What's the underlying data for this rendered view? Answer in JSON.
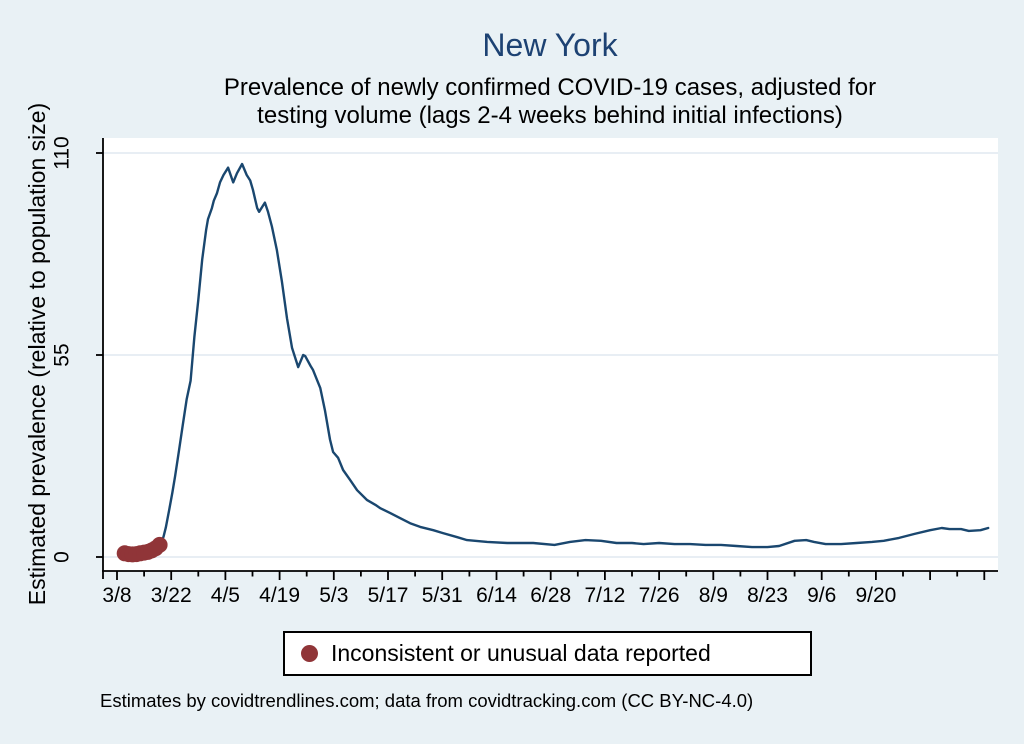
{
  "page": {
    "background": "#e9f1f5"
  },
  "header": {
    "title": "New York",
    "title_color": "#1d4273",
    "subtitle_lines": [
      "Prevalence of newly confirmed COVID-19 cases, adjusted for",
      "testing volume (lags 2-4 weeks behind initial infections)"
    ]
  },
  "chart_data": {
    "type": "line",
    "title": "New York",
    "subtitle": "Prevalence of newly confirmed COVID-19 cases, adjusted for testing volume (lags 2-4 weeks behind initial infections)",
    "xlabel": "",
    "ylabel": "Estimated prevalence (relative to population size)",
    "ylim": [
      0,
      110
    ],
    "yticks": [
      0,
      55,
      110
    ],
    "grid": "horizontal",
    "x_unit": "days since 3/8",
    "xtick_labels": [
      "3/8",
      "3/22",
      "4/5",
      "4/19",
      "5/3",
      "5/17",
      "5/31",
      "6/14",
      "6/28",
      "7/12",
      "7/26",
      "8/9",
      "8/23",
      "9/6",
      "9/20"
    ],
    "xtick_interval_days": 14,
    "minor_interval_days": 7,
    "axis_extent_days": 224,
    "colors": {
      "line": "#1a476f",
      "marker": "#903538",
      "gridline": "#e8eef4",
      "axis": "#000000",
      "plot_background": "#ffffff",
      "background": "#e9f1f5"
    },
    "series": [
      {
        "name": "Estimated prevalence",
        "color": "#1a476f",
        "points": [
          [
            2,
            1.0
          ],
          [
            4,
            0.7
          ],
          [
            6,
            1.0
          ],
          [
            8,
            1.4
          ],
          [
            10,
            2.4
          ],
          [
            11,
            3.3
          ],
          [
            12,
            5.5
          ],
          [
            12.6,
            8
          ],
          [
            13.5,
            13
          ],
          [
            14.3,
            17.6
          ],
          [
            15,
            22
          ],
          [
            16,
            29
          ],
          [
            17,
            36
          ],
          [
            18,
            43
          ],
          [
            19,
            48
          ],
          [
            20,
            60
          ],
          [
            21,
            70
          ],
          [
            22,
            81
          ],
          [
            23,
            89
          ],
          [
            23.5,
            92
          ],
          [
            24.5,
            95
          ],
          [
            25,
            97
          ],
          [
            25.8,
            99
          ],
          [
            26.6,
            102
          ],
          [
            27.5,
            104
          ],
          [
            28.7,
            106
          ],
          [
            30,
            102
          ],
          [
            31,
            104.5
          ],
          [
            32.3,
            107
          ],
          [
            33.5,
            104
          ],
          [
            34.4,
            102.5
          ],
          [
            35.1,
            100
          ],
          [
            36.2,
            95
          ],
          [
            36.7,
            94
          ],
          [
            38.2,
            96.5
          ],
          [
            39,
            94
          ],
          [
            40,
            90
          ],
          [
            41.3,
            83.5
          ],
          [
            42.6,
            75
          ],
          [
            43.9,
            65
          ],
          [
            45.2,
            57
          ],
          [
            46.8,
            51.7
          ],
          [
            48.1,
            55
          ],
          [
            48.6,
            54.7
          ],
          [
            50,
            52
          ],
          [
            50.6,
            51
          ],
          [
            52.5,
            46
          ],
          [
            53.7,
            40
          ],
          [
            55,
            32
          ],
          [
            55.8,
            28.6
          ],
          [
            57.1,
            27
          ],
          [
            58.4,
            23.7
          ],
          [
            60.2,
            21
          ],
          [
            62,
            18.2
          ],
          [
            64.6,
            15.5
          ],
          [
            66.7,
            14.2
          ],
          [
            68,
            13.3
          ],
          [
            70.5,
            12
          ],
          [
            73.1,
            10.6
          ],
          [
            75.7,
            9.2
          ],
          [
            78.3,
            8.2
          ],
          [
            81.7,
            7.3
          ],
          [
            84.2,
            6.5
          ],
          [
            87.9,
            5.4
          ],
          [
            90.4,
            4.6
          ],
          [
            95.6,
            4.1
          ],
          [
            100.8,
            3.8
          ],
          [
            107.5,
            3.8
          ],
          [
            113,
            3.3
          ],
          [
            117,
            4.1
          ],
          [
            121,
            4.6
          ],
          [
            125,
            4.4
          ],
          [
            129,
            3.8
          ],
          [
            133,
            3.8
          ],
          [
            136,
            3.5
          ],
          [
            140,
            3.8
          ],
          [
            144,
            3.5
          ],
          [
            148,
            3.5
          ],
          [
            152,
            3.3
          ],
          [
            156,
            3.3
          ],
          [
            160,
            3.0
          ],
          [
            164,
            2.7
          ],
          [
            168,
            2.7
          ],
          [
            171,
            3.0
          ],
          [
            175,
            4.4
          ],
          [
            178,
            4.6
          ],
          [
            180,
            4.1
          ],
          [
            183,
            3.5
          ],
          [
            187,
            3.5
          ],
          [
            191,
            3.8
          ],
          [
            195,
            4.1
          ],
          [
            198,
            4.4
          ],
          [
            202,
            5.2
          ],
          [
            206,
            6.3
          ],
          [
            210,
            7.3
          ],
          [
            213,
            7.9
          ],
          [
            215,
            7.6
          ],
          [
            218,
            7.6
          ],
          [
            220,
            7.1
          ],
          [
            223,
            7.3
          ],
          [
            225,
            7.9
          ]
        ]
      }
    ],
    "markers": {
      "name": "Inconsistent or unusual data reported",
      "color": "#903538",
      "radius": 8,
      "points": [
        [
          2,
          1.0
        ],
        [
          3,
          0.8
        ],
        [
          4,
          0.7
        ],
        [
          5,
          0.8
        ],
        [
          6,
          1.0
        ],
        [
          7,
          1.2
        ],
        [
          8,
          1.4
        ],
        [
          9,
          1.8
        ],
        [
          10,
          2.4
        ],
        [
          11,
          3.3
        ]
      ]
    }
  },
  "legend": {
    "label": "Inconsistent or unusual data reported",
    "marker_color": "#903538"
  },
  "footer": {
    "note": "Estimates by covidtrendlines.com; data from covidtracking.com (CC BY-NC-4.0)"
  }
}
